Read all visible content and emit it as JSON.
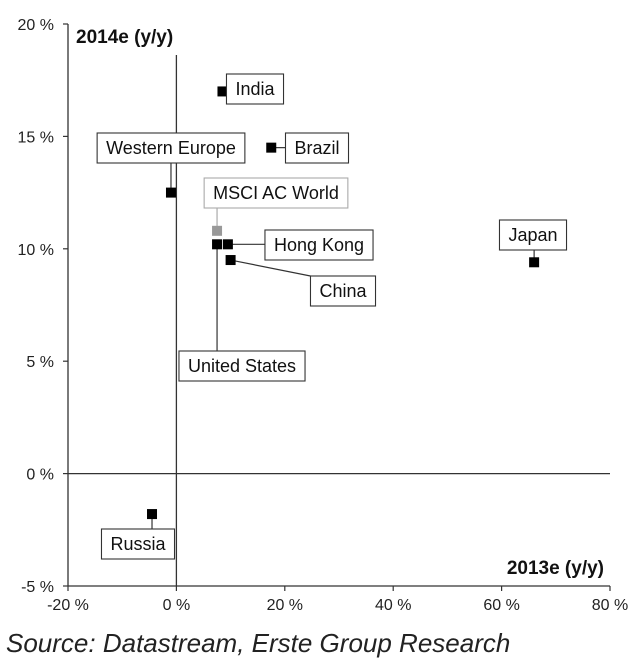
{
  "chart_data": {
    "type": "scatter",
    "xlabel": "2013e (y/y)",
    "ylabel": "2014e (y/y)",
    "xlim": [
      -20,
      80
    ],
    "ylim": [
      -5,
      20
    ],
    "x_ticks": [
      "-20 %",
      "0 %",
      "20 %",
      "40 %",
      "60 %",
      "80 %"
    ],
    "y_ticks": [
      "-5 %",
      "0 %",
      "5 %",
      "10 %",
      "15 %",
      "20 %"
    ],
    "x_tick_values": [
      -20,
      0,
      20,
      40,
      60,
      80
    ],
    "y_tick_values": [
      -5,
      0,
      5,
      10,
      15,
      20
    ],
    "grid": false,
    "points": [
      {
        "name": "India",
        "x": 8.5,
        "y": 17.0,
        "color": "#000000"
      },
      {
        "name": "Brazil",
        "x": 17.5,
        "y": 14.5,
        "color": "#000000"
      },
      {
        "name": "Western Europe",
        "x": -1.0,
        "y": 12.5,
        "color": "#000000"
      },
      {
        "name": "MSCI AC World",
        "x": 7.5,
        "y": 10.8,
        "color": "#999999"
      },
      {
        "name": "Hong Kong",
        "x": 9.5,
        "y": 10.2,
        "color": "#000000"
      },
      {
        "name": "United States",
        "x": 7.5,
        "y": 10.2,
        "color": "#000000"
      },
      {
        "name": "China",
        "x": 10.0,
        "y": 9.5,
        "color": "#000000"
      },
      {
        "name": "Japan",
        "x": 66.0,
        "y": 9.4,
        "color": "#000000"
      },
      {
        "name": "Russia",
        "x": -4.5,
        "y": -1.8,
        "color": "#000000"
      }
    ]
  },
  "source": "Source: Datastream, Erste Group Research"
}
